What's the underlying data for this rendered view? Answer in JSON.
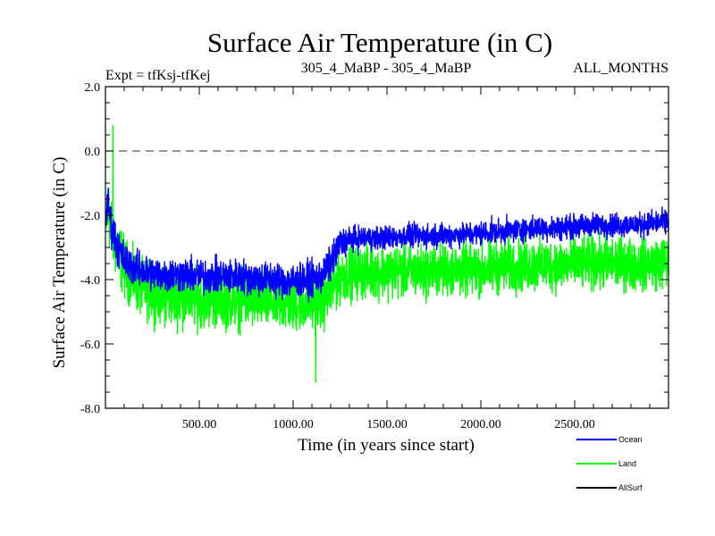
{
  "chart_data": {
    "type": "line",
    "title": "Surface Air Temperature (in C)",
    "subtitle_left": "Expt = tfKsj-tfKej",
    "subtitle_center": "305_4_MaBP - 305_4_MaBP",
    "subtitle_right": "ALL_MONTHS",
    "xlabel": "Time (in years since start)",
    "ylabel": "Surface Air Temperature (in C)",
    "xlim": [
      0,
      3000
    ],
    "ylim": [
      -8.0,
      2.0
    ],
    "x_ticks": [
      500,
      1000,
      1500,
      2000,
      2500
    ],
    "x_tick_labels": [
      "500.00",
      "1000.00",
      "1500.00",
      "2000.00",
      "2500.00"
    ],
    "y_ticks": [
      2.0,
      0.0,
      -2.0,
      -4.0,
      -6.0,
      -8.0
    ],
    "y_tick_labels": [
      "2.0",
      "0.0",
      "-2.0",
      "-4.0",
      "-6.0",
      "-8.0"
    ],
    "reference_line": 0.0,
    "series": [
      {
        "name": "Land",
        "color": "#00ff00",
        "x": [
          0,
          15,
          30,
          60,
          100,
          150,
          200,
          300,
          400,
          500,
          600,
          700,
          800,
          900,
          1000,
          1100,
          1150,
          1200,
          1250,
          1300,
          1400,
          1500,
          1600,
          1700,
          1800,
          1900,
          2000,
          2100,
          2200,
          2300,
          2400,
          2500,
          2600,
          2700,
          2800,
          2900,
          3000
        ],
        "center": [
          -2.3,
          -1.8,
          -2.4,
          -3.0,
          -3.6,
          -4.0,
          -4.3,
          -4.5,
          -4.6,
          -4.6,
          -4.6,
          -4.65,
          -4.65,
          -4.7,
          -4.75,
          -4.7,
          -4.7,
          -4.4,
          -3.9,
          -3.8,
          -3.75,
          -3.75,
          -3.75,
          -3.75,
          -3.7,
          -3.7,
          -3.7,
          -3.6,
          -3.6,
          -3.55,
          -3.55,
          -3.5,
          -3.5,
          -3.5,
          -3.5,
          -3.5,
          -3.45
        ],
        "spread": [
          1.2,
          1.6,
          1.6,
          1.5,
          1.4,
          1.3,
          1.3,
          1.3,
          1.3,
          1.3,
          1.3,
          1.3,
          1.3,
          1.3,
          1.3,
          1.3,
          1.3,
          1.3,
          1.2,
          1.2,
          1.2,
          1.2,
          1.2,
          1.2,
          1.2,
          1.2,
          1.2,
          1.2,
          1.2,
          1.2,
          1.2,
          1.2,
          1.2,
          1.2,
          1.2,
          1.2,
          1.2
        ],
        "max_value": 0.8,
        "min_value": -7.2
      },
      {
        "name": "Ocean",
        "color": "#0000ff",
        "x": [
          0,
          15,
          30,
          60,
          100,
          150,
          200,
          300,
          400,
          500,
          600,
          700,
          800,
          900,
          1000,
          1100,
          1150,
          1200,
          1250,
          1300,
          1400,
          1500,
          1600,
          1700,
          1800,
          1900,
          2000,
          2100,
          2200,
          2300,
          2400,
          2500,
          2600,
          2700,
          2800,
          2900,
          3000
        ],
        "center": [
          -2.2,
          -1.6,
          -2.3,
          -2.9,
          -3.4,
          -3.6,
          -3.75,
          -3.85,
          -3.85,
          -3.9,
          -3.9,
          -3.9,
          -3.95,
          -4.0,
          -4.05,
          -4.0,
          -3.9,
          -3.5,
          -2.9,
          -2.75,
          -2.7,
          -2.7,
          -2.65,
          -2.65,
          -2.6,
          -2.6,
          -2.55,
          -2.5,
          -2.45,
          -2.4,
          -2.4,
          -2.35,
          -2.3,
          -2.3,
          -2.3,
          -2.25,
          -2.2
        ],
        "spread": [
          0.6,
          0.8,
          0.9,
          0.9,
          0.85,
          0.8,
          0.8,
          0.8,
          0.8,
          0.8,
          0.8,
          0.8,
          0.8,
          0.8,
          0.8,
          0.8,
          0.8,
          0.8,
          0.75,
          0.6,
          0.55,
          0.55,
          0.55,
          0.55,
          0.55,
          0.55,
          0.55,
          0.55,
          0.55,
          0.55,
          0.55,
          0.55,
          0.55,
          0.55,
          0.55,
          0.55,
          0.55
        ]
      },
      {
        "name": "AllSurf",
        "color": "#000000",
        "x": [],
        "values": []
      }
    ],
    "legend": {
      "placement": "bottom-right",
      "entries": [
        {
          "name": "Ocean",
          "color": "#0000ff"
        },
        {
          "name": "Land",
          "color": "#00ff00"
        },
        {
          "name": "AllSurf",
          "color": "#000000"
        }
      ]
    }
  }
}
